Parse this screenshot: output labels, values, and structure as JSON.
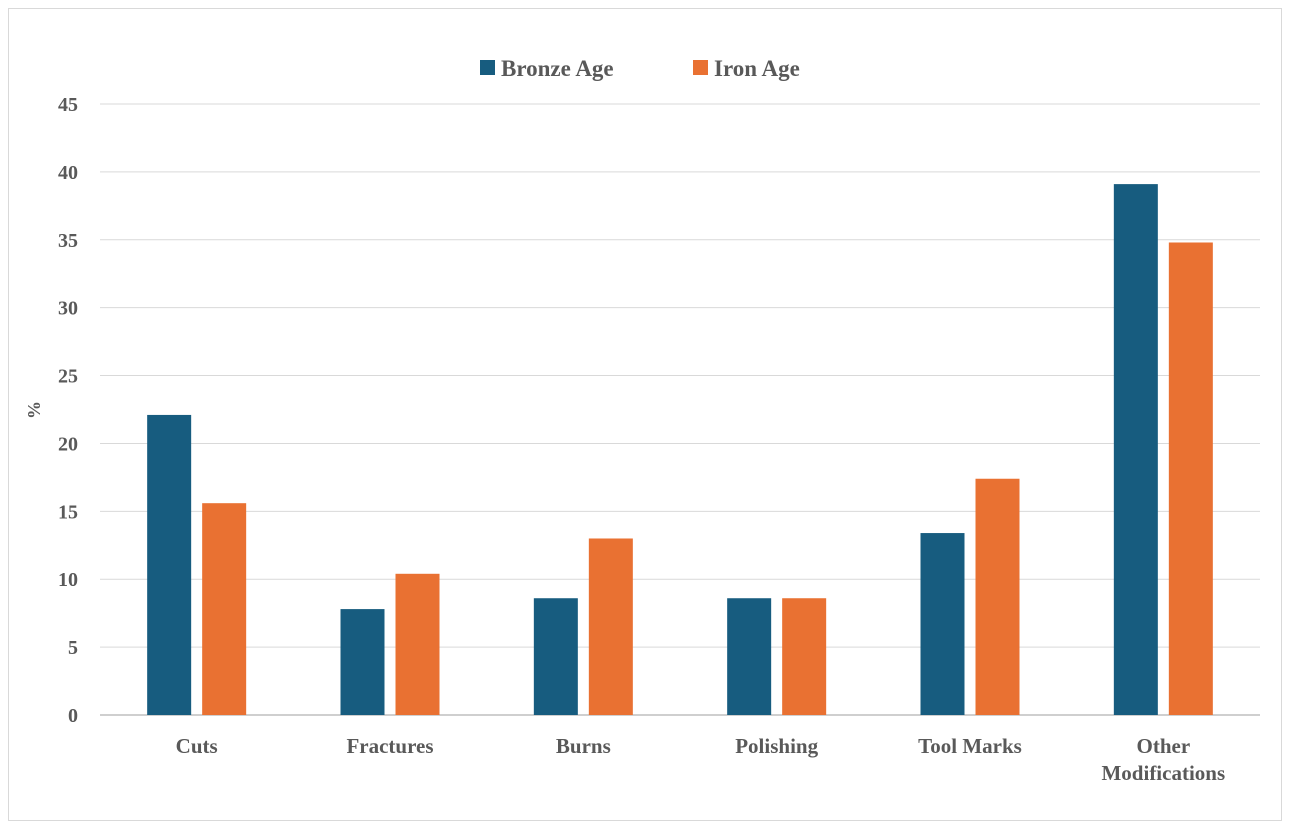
{
  "chart_data": {
    "type": "bar",
    "title": "",
    "xlabel": "",
    "ylabel": "%",
    "ylim": [
      0,
      45
    ],
    "yticks": [
      "0",
      "5",
      "10",
      "15",
      "20",
      "25",
      "30",
      "35",
      "40",
      "45"
    ],
    "grid": true,
    "legend_position": "top-center",
    "categories": [
      [
        "Cuts"
      ],
      [
        "Fractures"
      ],
      [
        "Burns"
      ],
      [
        "Polishing"
      ],
      [
        "Tool Marks"
      ],
      [
        "Other",
        "Modifications"
      ]
    ],
    "series": [
      {
        "name": "Bronze Age",
        "color": "#175c7f",
        "values": [
          22.1,
          7.8,
          8.6,
          8.6,
          13.4,
          39.1
        ]
      },
      {
        "name": "Iron Age",
        "color": "#e97132",
        "values": [
          15.6,
          10.4,
          13.0,
          8.6,
          17.4,
          34.8
        ]
      }
    ]
  }
}
